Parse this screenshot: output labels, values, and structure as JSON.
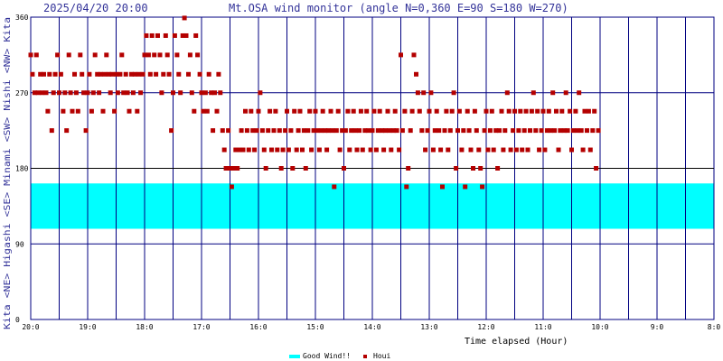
{
  "header": {
    "datetime": "2025/04/20 20:00",
    "title": "Mt.OSA wind monitor (angle N=0,360 E=90 S=180 W=270)"
  },
  "colors": {
    "grid": "#000080",
    "good_band": "#00ffff",
    "houi": "#b40000",
    "text": "#333399"
  },
  "chart_data": {
    "type": "scatter",
    "xlabel": "Time elapsed (Hour)",
    "x_tick_labels": [
      "20:0",
      "19:0",
      "18:0",
      "17:0",
      "16:0",
      "15:0",
      "14:0",
      "13:0",
      "12:0",
      "11:0",
      "10:0",
      "9:0",
      "8:0"
    ],
    "x_direction": "descending hours, 20:00 at left to 8:00 at right",
    "ylim": [
      0,
      360
    ],
    "y_ticks": [
      0,
      90,
      180,
      270,
      360
    ],
    "y_axis_labels": [
      "Kita",
      "<NE>",
      "Higashi",
      "<SE>",
      "Minami",
      "<SW>",
      "Nishi",
      "<NW>",
      "Kita"
    ],
    "good_wind_range": [
      108,
      162
    ],
    "legend": [
      {
        "label": "Good Wind!!",
        "color": "#00ffff",
        "kind": "band"
      },
      {
        "label": "Houi",
        "color": "#b40000",
        "kind": "point"
      }
    ],
    "series": [
      {
        "name": "Houi",
        "points": [
          [
            20.0,
            315
          ],
          [
            19.97,
            292
          ],
          [
            19.93,
            270
          ],
          [
            19.9,
            315
          ],
          [
            19.87,
            270
          ],
          [
            19.83,
            292
          ],
          [
            19.8,
            270
          ],
          [
            19.77,
            292
          ],
          [
            19.73,
            270
          ],
          [
            19.7,
            248
          ],
          [
            19.67,
            292
          ],
          [
            19.63,
            225
          ],
          [
            19.6,
            270
          ],
          [
            19.57,
            292
          ],
          [
            19.53,
            315
          ],
          [
            19.5,
            270
          ],
          [
            19.47,
            292
          ],
          [
            19.43,
            248
          ],
          [
            19.4,
            270
          ],
          [
            19.37,
            225
          ],
          [
            19.33,
            315
          ],
          [
            19.3,
            270
          ],
          [
            19.27,
            248
          ],
          [
            19.23,
            292
          ],
          [
            19.2,
            270
          ],
          [
            19.17,
            248
          ],
          [
            19.13,
            315
          ],
          [
            19.1,
            292
          ],
          [
            19.07,
            270
          ],
          [
            19.03,
            225
          ],
          [
            19.0,
            270
          ],
          [
            18.97,
            292
          ],
          [
            18.93,
            248
          ],
          [
            18.9,
            270
          ],
          [
            18.87,
            315
          ],
          [
            18.83,
            292
          ],
          [
            18.8,
            270
          ],
          [
            18.77,
            292
          ],
          [
            18.73,
            248
          ],
          [
            18.7,
            292
          ],
          [
            18.67,
            315
          ],
          [
            18.63,
            292
          ],
          [
            18.6,
            270
          ],
          [
            18.57,
            292
          ],
          [
            18.53,
            248
          ],
          [
            18.5,
            292
          ],
          [
            18.47,
            270
          ],
          [
            18.43,
            292
          ],
          [
            18.4,
            315
          ],
          [
            18.37,
            270
          ],
          [
            18.33,
            292
          ],
          [
            18.3,
            270
          ],
          [
            18.27,
            248
          ],
          [
            18.23,
            292
          ],
          [
            18.2,
            270
          ],
          [
            18.17,
            292
          ],
          [
            18.13,
            248
          ],
          [
            18.1,
            292
          ],
          [
            18.07,
            270
          ],
          [
            18.03,
            292
          ],
          [
            18.0,
            315
          ],
          [
            17.97,
            338
          ],
          [
            17.93,
            315
          ],
          [
            17.9,
            292
          ],
          [
            17.87,
            338
          ],
          [
            17.83,
            315
          ],
          [
            17.8,
            292
          ],
          [
            17.77,
            338
          ],
          [
            17.73,
            315
          ],
          [
            17.7,
            270
          ],
          [
            17.67,
            292
          ],
          [
            17.63,
            338
          ],
          [
            17.6,
            315
          ],
          [
            17.57,
            292
          ],
          [
            17.53,
            225
          ],
          [
            17.5,
            270
          ],
          [
            17.47,
            338
          ],
          [
            17.43,
            315
          ],
          [
            17.4,
            292
          ],
          [
            17.37,
            270
          ],
          [
            17.33,
            338
          ],
          [
            17.3,
            359
          ],
          [
            17.27,
            338
          ],
          [
            17.23,
            292
          ],
          [
            17.2,
            315
          ],
          [
            17.17,
            270
          ],
          [
            17.13,
            248
          ],
          [
            17.1,
            338
          ],
          [
            17.07,
            315
          ],
          [
            17.03,
            292
          ],
          [
            17.0,
            270
          ],
          [
            16.97,
            248
          ],
          [
            16.93,
            270
          ],
          [
            16.9,
            248
          ],
          [
            16.87,
            292
          ],
          [
            16.83,
            270
          ],
          [
            16.8,
            225
          ],
          [
            16.77,
            270
          ],
          [
            16.73,
            248
          ],
          [
            16.7,
            292
          ],
          [
            16.67,
            270
          ],
          [
            16.63,
            225
          ],
          [
            16.6,
            202
          ],
          [
            16.57,
            180
          ],
          [
            16.53,
            225
          ],
          [
            16.5,
            180
          ],
          [
            16.47,
            158
          ],
          [
            16.43,
            180
          ],
          [
            16.4,
            202
          ],
          [
            16.37,
            180
          ],
          [
            16.33,
            202
          ],
          [
            16.3,
            225
          ],
          [
            16.27,
            202
          ],
          [
            16.23,
            248
          ],
          [
            16.2,
            225
          ],
          [
            16.17,
            202
          ],
          [
            16.13,
            248
          ],
          [
            16.1,
            225
          ],
          [
            16.07,
            202
          ],
          [
            16.03,
            225
          ],
          [
            16.0,
            248
          ],
          [
            15.97,
            270
          ],
          [
            15.93,
            225
          ],
          [
            15.9,
            202
          ],
          [
            15.87,
            180
          ],
          [
            15.83,
            225
          ],
          [
            15.8,
            248
          ],
          [
            15.77,
            202
          ],
          [
            15.73,
            225
          ],
          [
            15.7,
            248
          ],
          [
            15.67,
            202
          ],
          [
            15.63,
            225
          ],
          [
            15.6,
            180
          ],
          [
            15.57,
            202
          ],
          [
            15.53,
            225
          ],
          [
            15.5,
            248
          ],
          [
            15.47,
            202
          ],
          [
            15.43,
            225
          ],
          [
            15.4,
            180
          ],
          [
            15.37,
            248
          ],
          [
            15.33,
            202
          ],
          [
            15.3,
            225
          ],
          [
            15.27,
            248
          ],
          [
            15.23,
            202
          ],
          [
            15.2,
            225
          ],
          [
            15.17,
            180
          ],
          [
            15.13,
            225
          ],
          [
            15.1,
            248
          ],
          [
            15.07,
            202
          ],
          [
            15.03,
            225
          ],
          [
            15.0,
            248
          ],
          [
            14.97,
            225
          ],
          [
            14.93,
            202
          ],
          [
            14.9,
            225
          ],
          [
            14.87,
            248
          ],
          [
            14.83,
            225
          ],
          [
            14.8,
            202
          ],
          [
            14.77,
            225
          ],
          [
            14.73,
            248
          ],
          [
            14.7,
            225
          ],
          [
            14.67,
            158
          ],
          [
            14.63,
            225
          ],
          [
            14.6,
            248
          ],
          [
            14.57,
            202
          ],
          [
            14.53,
            225
          ],
          [
            14.5,
            180
          ],
          [
            14.47,
            225
          ],
          [
            14.43,
            248
          ],
          [
            14.4,
            202
          ],
          [
            14.37,
            225
          ],
          [
            14.33,
            248
          ],
          [
            14.3,
            225
          ],
          [
            14.27,
            202
          ],
          [
            14.23,
            225
          ],
          [
            14.2,
            248
          ],
          [
            14.17,
            202
          ],
          [
            14.13,
            225
          ],
          [
            14.1,
            248
          ],
          [
            14.07,
            225
          ],
          [
            14.03,
            202
          ],
          [
            14.0,
            225
          ],
          [
            13.97,
            248
          ],
          [
            13.93,
            202
          ],
          [
            13.9,
            225
          ],
          [
            13.87,
            248
          ],
          [
            13.83,
            225
          ],
          [
            13.8,
            202
          ],
          [
            13.77,
            225
          ],
          [
            13.73,
            248
          ],
          [
            13.7,
            225
          ],
          [
            13.67,
            202
          ],
          [
            13.63,
            225
          ],
          [
            13.6,
            248
          ],
          [
            13.57,
            225
          ],
          [
            13.53,
            202
          ],
          [
            13.5,
            315
          ],
          [
            13.47,
            225
          ],
          [
            13.43,
            248
          ],
          [
            13.4,
            158
          ],
          [
            13.37,
            180
          ],
          [
            13.33,
            225
          ],
          [
            13.3,
            248
          ],
          [
            13.27,
            315
          ],
          [
            13.23,
            292
          ],
          [
            13.2,
            270
          ],
          [
            13.17,
            248
          ],
          [
            13.13,
            225
          ],
          [
            13.1,
            270
          ],
          [
            13.07,
            202
          ],
          [
            13.03,
            225
          ],
          [
            13.0,
            248
          ],
          [
            12.97,
            270
          ],
          [
            12.93,
            202
          ],
          [
            12.9,
            225
          ],
          [
            12.87,
            248
          ],
          [
            12.83,
            225
          ],
          [
            12.8,
            202
          ],
          [
            12.77,
            158
          ],
          [
            12.73,
            225
          ],
          [
            12.7,
            248
          ],
          [
            12.67,
            202
          ],
          [
            12.63,
            225
          ],
          [
            12.6,
            248
          ],
          [
            12.57,
            270
          ],
          [
            12.53,
            180
          ],
          [
            12.5,
            225
          ],
          [
            12.47,
            248
          ],
          [
            12.43,
            202
          ],
          [
            12.4,
            225
          ],
          [
            12.37,
            158
          ],
          [
            12.33,
            248
          ],
          [
            12.3,
            225
          ],
          [
            12.27,
            202
          ],
          [
            12.23,
            180
          ],
          [
            12.2,
            248
          ],
          [
            12.17,
            225
          ],
          [
            12.13,
            202
          ],
          [
            12.1,
            180
          ],
          [
            12.07,
            158
          ],
          [
            12.03,
            225
          ],
          [
            12.0,
            248
          ],
          [
            11.97,
            202
          ],
          [
            11.93,
            225
          ],
          [
            11.9,
            248
          ],
          [
            11.87,
            202
          ],
          [
            11.83,
            225
          ],
          [
            11.8,
            180
          ],
          [
            11.77,
            225
          ],
          [
            11.73,
            248
          ],
          [
            11.7,
            202
          ],
          [
            11.67,
            225
          ],
          [
            11.63,
            270
          ],
          [
            11.6,
            248
          ],
          [
            11.57,
            202
          ],
          [
            11.53,
            225
          ],
          [
            11.5,
            248
          ],
          [
            11.47,
            202
          ],
          [
            11.43,
            225
          ],
          [
            11.4,
            248
          ],
          [
            11.37,
            202
          ],
          [
            11.33,
            225
          ],
          [
            11.3,
            248
          ],
          [
            11.27,
            202
          ],
          [
            11.23,
            225
          ],
          [
            11.2,
            248
          ],
          [
            11.17,
            270
          ],
          [
            11.13,
            225
          ],
          [
            11.1,
            248
          ],
          [
            11.07,
            202
          ],
          [
            11.03,
            225
          ],
          [
            11.0,
            248
          ],
          [
            10.97,
            202
          ],
          [
            10.93,
            225
          ],
          [
            10.9,
            248
          ],
          [
            10.87,
            225
          ],
          [
            10.83,
            270
          ],
          [
            10.8,
            225
          ],
          [
            10.77,
            248
          ],
          [
            10.73,
            202
          ],
          [
            10.7,
            225
          ],
          [
            10.67,
            248
          ],
          [
            10.63,
            225
          ],
          [
            10.6,
            270
          ],
          [
            10.57,
            225
          ],
          [
            10.53,
            248
          ],
          [
            10.5,
            202
          ],
          [
            10.47,
            225
          ],
          [
            10.43,
            248
          ],
          [
            10.4,
            225
          ],
          [
            10.37,
            270
          ],
          [
            10.33,
            225
          ],
          [
            10.3,
            202
          ],
          [
            10.27,
            248
          ],
          [
            10.23,
            225
          ],
          [
            10.2,
            248
          ],
          [
            10.17,
            202
          ],
          [
            10.13,
            225
          ],
          [
            10.1,
            248
          ],
          [
            10.07,
            180
          ],
          [
            10.03,
            225
          ]
        ]
      }
    ]
  }
}
